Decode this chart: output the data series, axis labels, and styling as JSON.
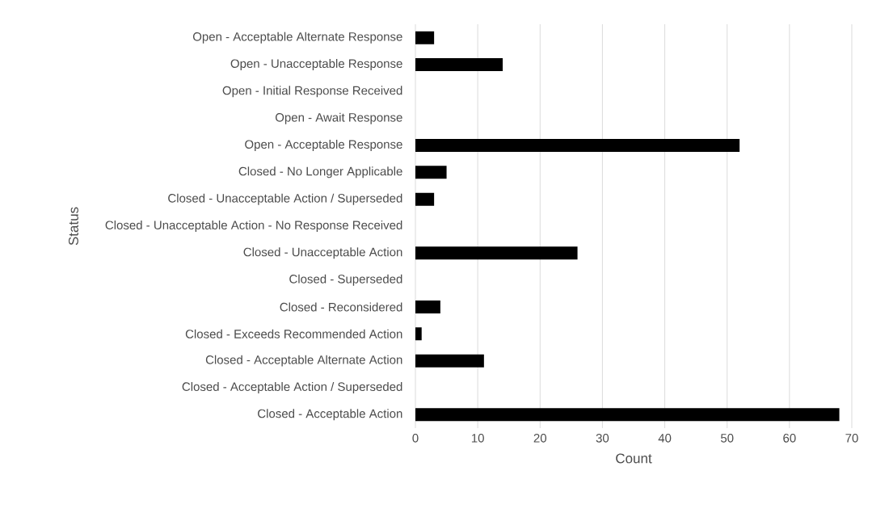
{
  "chart_data": {
    "type": "bar",
    "orientation": "horizontal",
    "xlabel": "Count",
    "ylabel": "Status",
    "categories": [
      "Open - Acceptable Alternate Response",
      "Open - Unacceptable Response",
      "Open - Initial Response Received",
      "Open - Await Response",
      "Open - Acceptable Response",
      "Closed - No Longer Applicable",
      "Closed - Unacceptable Action / Superseded",
      "Closed - Unacceptable Action - No Response Received",
      "Closed - Unacceptable Action",
      "Closed - Superseded",
      "Closed - Reconsidered",
      "Closed - Exceeds Recommended Action",
      "Closed - Acceptable Alternate Action",
      "Closed - Acceptable Action / Superseded",
      "Closed - Acceptable Action"
    ],
    "values": [
      3,
      14,
      0,
      0,
      52,
      5,
      3,
      0,
      26,
      0,
      4,
      1,
      11,
      0,
      68
    ],
    "color": "#000000",
    "xlim": [
      0,
      70
    ],
    "xticks": [
      0,
      10,
      20,
      30,
      40,
      50,
      60,
      70
    ],
    "grid": "x"
  }
}
